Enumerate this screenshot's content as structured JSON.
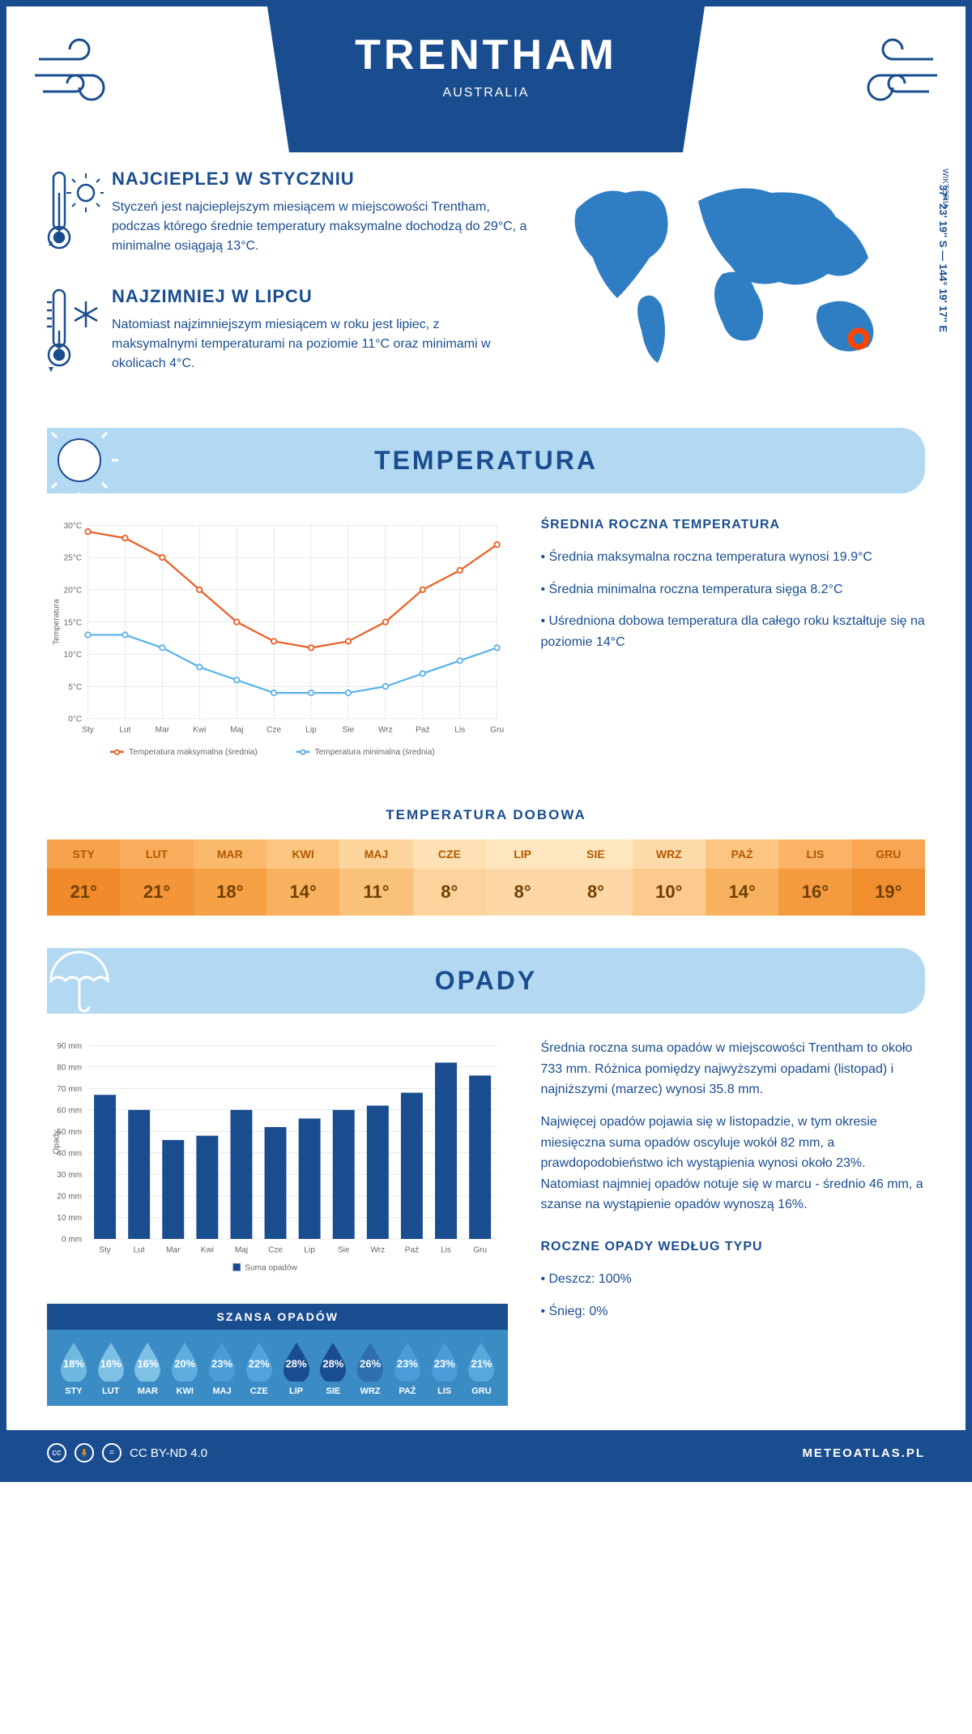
{
  "header": {
    "title": "TRENTHAM",
    "country": "AUSTRALIA"
  },
  "location": {
    "region": "WIKTORIA",
    "coords": "37° 23' 19'' S — 144° 19' 17'' E",
    "marker_color": "#ff4500",
    "map_color": "#2f7ec4"
  },
  "facts": {
    "warm": {
      "title": "NAJCIEPLEJ W STYCZNIU",
      "text": "Styczeń jest najcieplejszym miesiącem w miejscowości Trentham, podczas którego średnie temperatury maksymalne dochodzą do 29°C, a minimalne osiągają 13°C."
    },
    "cold": {
      "title": "NAJZIMNIEJ W LIPCU",
      "text": "Natomiast najzimniejszym miesiącem w roku jest lipiec, z maksymalnymi temperaturami na poziomie 11°C oraz minimami w okolicach 4°C."
    }
  },
  "temperature": {
    "banner": "TEMPERATURA",
    "months": [
      "Sty",
      "Lut",
      "Mar",
      "Kwi",
      "Maj",
      "Cze",
      "Lip",
      "Sie",
      "Wrz",
      "Paź",
      "Lis",
      "Gru"
    ],
    "max_series": [
      29,
      28,
      25,
      20,
      15,
      12,
      11,
      12,
      15,
      20,
      23,
      27
    ],
    "min_series": [
      13,
      13,
      11,
      8,
      6,
      4,
      4,
      4,
      5,
      7,
      9,
      11
    ],
    "max_color": "#e8622a",
    "min_color": "#5fb3e8",
    "grid_color": "#d0d0d0",
    "ylim": [
      0,
      30
    ],
    "ytick_step": 5,
    "y_label": "Temperatura",
    "legend_max": "Temperatura maksymalna (średnia)",
    "legend_min": "Temperatura minimalna (średnia)",
    "side": {
      "title": "ŚREDNIA ROCZNA TEMPERATURA",
      "p1": "• Średnia maksymalna roczna temperatura wynosi 19.9°C",
      "p2": "• Średnia minimalna roczna temperatura sięga 8.2°C",
      "p3": "• Uśredniona dobowa temperatura dla całego roku kształtuje się na poziomie 14°C"
    },
    "daily": {
      "title": "TEMPERATURA DOBOWA",
      "months": [
        "STY",
        "LUT",
        "MAR",
        "KWI",
        "MAJ",
        "CZE",
        "LIP",
        "SIE",
        "WRZ",
        "PAŹ",
        "LIS",
        "GRU"
      ],
      "values": [
        "21°",
        "21°",
        "18°",
        "14°",
        "11°",
        "8°",
        "8°",
        "8°",
        "10°",
        "14°",
        "16°",
        "19°"
      ],
      "head_colors": [
        "#f7a24d",
        "#f9ad5c",
        "#fbb96d",
        "#fcc682",
        "#fdd49b",
        "#fee2b6",
        "#fee6bf",
        "#fee6bf",
        "#fddba8",
        "#fcc682",
        "#fab367",
        "#f8a653"
      ],
      "val_colors": [
        "#f08a2a",
        "#f39538",
        "#f6a146",
        "#f8b15e",
        "#fac17b",
        "#fcd39d",
        "#fdd8a6",
        "#fdd8a6",
        "#fbca8c",
        "#f8b15e",
        "#f49a3f",
        "#f18f30"
      ]
    }
  },
  "precip": {
    "banner": "OPADY",
    "months": [
      "Sty",
      "Lut",
      "Mar",
      "Kwi",
      "Maj",
      "Cze",
      "Lip",
      "Sie",
      "Wrz",
      "Paź",
      "Lis",
      "Gru"
    ],
    "values": [
      67,
      60,
      46,
      48,
      60,
      52,
      56,
      60,
      62,
      68,
      82,
      76
    ],
    "bar_color": "#1a4d8f",
    "ylim": [
      0,
      90
    ],
    "ytick_step": 10,
    "y_label": "Opady",
    "legend": "Suma opadów",
    "side": {
      "p1": "Średnia roczna suma opadów w miejscowości Trentham to około 733 mm. Różnica pomiędzy najwyższymi opadami (listopad) i najniższymi (marzec) wynosi 35.8 mm.",
      "p2": "Najwięcej opadów pojawia się w listopadzie, w tym okresie miesięczna suma opadów oscyluje wokół 82 mm, a prawdopodobieństwo ich wystąpienia wynosi około 23%. Natomiast najmniej opadów notuje się w marcu - średnio 46 mm, a szanse na wystąpienie opadów wynoszą 16%.",
      "type_title": "ROCZNE OPADY WEDŁUG TYPU",
      "rain": "• Deszcz: 100%",
      "snow": "• Śnieg: 0%"
    },
    "chance": {
      "title": "SZANSA OPADÓW",
      "months": [
        "STY",
        "LUT",
        "MAR",
        "KWI",
        "MAJ",
        "CZE",
        "LIP",
        "SIE",
        "WRZ",
        "PAŹ",
        "LIS",
        "GRU"
      ],
      "values": [
        "18%",
        "16%",
        "16%",
        "20%",
        "23%",
        "22%",
        "28%",
        "28%",
        "26%",
        "23%",
        "23%",
        "21%"
      ],
      "drop_colors": [
        "#6fb8e0",
        "#7fc0e5",
        "#7fc0e5",
        "#5fade0",
        "#4a9dd8",
        "#52a3db",
        "#1a4d8f",
        "#1a4d8f",
        "#2f6fb0",
        "#4a9dd8",
        "#4a9dd8",
        "#58a8dd"
      ]
    }
  },
  "footer": {
    "license": "CC BY-ND 4.0",
    "site": "METEOATLAS.PL"
  }
}
